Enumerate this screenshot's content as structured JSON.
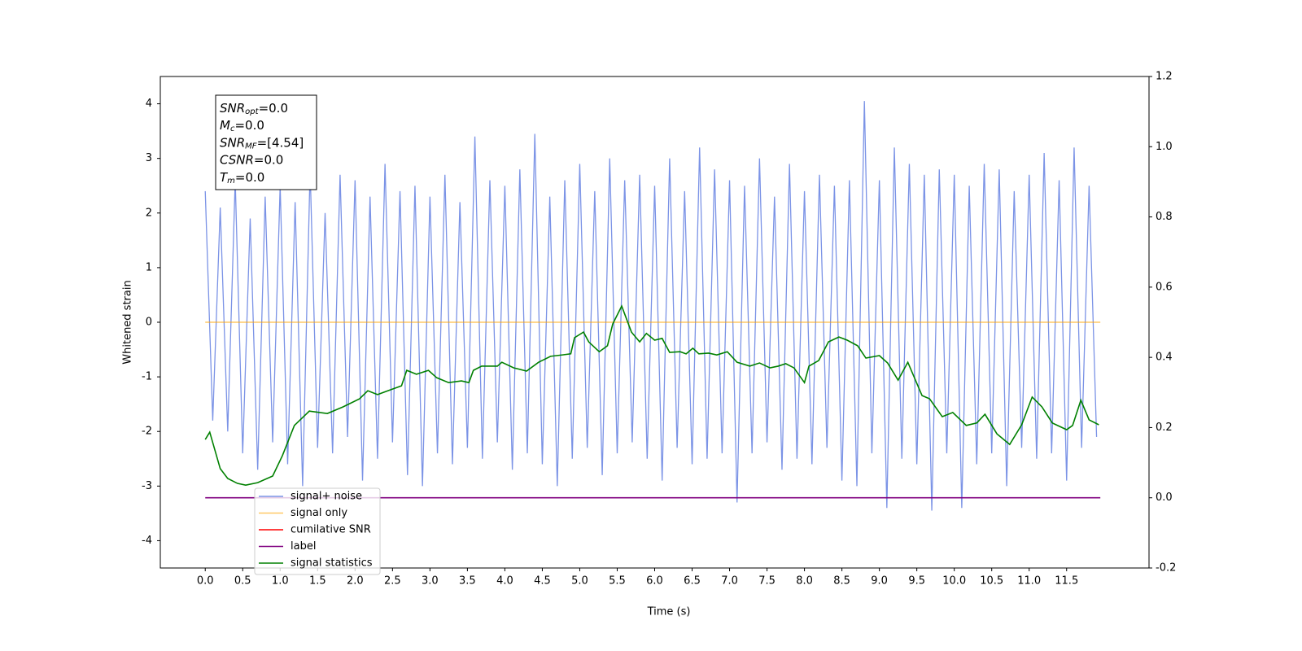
{
  "chart_data": {
    "type": "line",
    "xlabel": "Time (s)",
    "ylabel": "Whitened strain",
    "xlim": [
      -0.6,
      12.6
    ],
    "ylim": [
      -4.5,
      4.5
    ],
    "y2lim": [
      -0.2,
      1.2
    ],
    "xticks": [
      {
        "value": 0,
        "label": "0.0"
      },
      0.5,
      {
        "value": 1,
        "label": "1.0"
      },
      1.5,
      {
        "value": 2,
        "label": "2.0"
      },
      2.5,
      {
        "value": 3,
        "label": "3.0"
      },
      3.5,
      {
        "value": 4,
        "label": "4.0"
      },
      4.5,
      {
        "value": 5,
        "label": "5.0"
      },
      5.5,
      {
        "value": 6,
        "label": "6.0"
      },
      6.5,
      {
        "value": 7,
        "label": "7.0"
      },
      7.5,
      {
        "value": 8,
        "label": "8.0"
      },
      8.5,
      {
        "value": 9,
        "label": "9.0"
      },
      9.5,
      {
        "value": 10,
        "label": "10.0"
      },
      10.5,
      {
        "value": 11,
        "label": "11.0"
      },
      11.5
    ],
    "yticks": [
      -4,
      -3,
      -2,
      -1,
      0,
      1,
      2,
      3,
      4
    ],
    "y2ticks": [
      -0.2,
      {
        "value": 0,
        "label": "0.0"
      },
      0.2,
      0.4,
      0.6,
      0.8,
      {
        "value": 1,
        "label": "1.0"
      },
      1.2
    ],
    "legend": "lower left",
    "annotation": [
      {
        "symbol": "SNR",
        "subscript": "opt",
        "text": "=0.0"
      },
      {
        "symbol": "M",
        "subscript": "c",
        "text": "=0.0"
      },
      {
        "symbol": "SNR",
        "subscript": "MF",
        "text": "=[4.54]"
      },
      {
        "symbol": "CSNR",
        "text": "=0.0"
      },
      {
        "symbol": "T",
        "subscript": "m",
        "text": "=0.0"
      }
    ],
    "series": [
      {
        "name": "signal+ noise",
        "color": "#7b93e6",
        "x": [
          0,
          0.1,
          0.2,
          0.3,
          0.4,
          0.5,
          0.6,
          0.7,
          0.8,
          0.9,
          1,
          1.1,
          1.2,
          1.3,
          1.4,
          1.5,
          1.6,
          1.7,
          1.8,
          1.9,
          2,
          2.1,
          2.2,
          2.3,
          2.4,
          2.5,
          2.6,
          2.7,
          2.8,
          2.9,
          3,
          3.1,
          3.2,
          3.3,
          3.4,
          3.5,
          3.6,
          3.7,
          3.8,
          3.9,
          4,
          4.1,
          4.2,
          4.3,
          4.4,
          4.5,
          4.6,
          4.7,
          4.8,
          4.9,
          5,
          5.1,
          5.2,
          5.3,
          5.4,
          5.5,
          5.6,
          5.7,
          5.8,
          5.9,
          6,
          6.1,
          6.2,
          6.3,
          6.4,
          6.5,
          6.6,
          6.7,
          6.8,
          6.9,
          7,
          7.1,
          7.2,
          7.3,
          7.4,
          7.5,
          7.6,
          7.7,
          7.8,
          7.9,
          8,
          8.1,
          8.2,
          8.3,
          8.4,
          8.5,
          8.6,
          8.7,
          8.8,
          8.9,
          9,
          9.1,
          9.2,
          9.3,
          9.4,
          9.5,
          9.6,
          9.7,
          9.8,
          9.9,
          10,
          10.1,
          10.2,
          10.3,
          10.4,
          10.5,
          10.6,
          10.7,
          10.8,
          10.9,
          11,
          11.1,
          11.2,
          11.3,
          11.4,
          11.5,
          11.6,
          11.7,
          11.8,
          11.9
        ],
        "values": [
          2.4,
          -1.8,
          2.1,
          -2.0,
          2.6,
          -2.4,
          1.9,
          -2.7,
          2.3,
          -2.2,
          2.5,
          -2.6,
          2.2,
          -3.0,
          2.8,
          -2.3,
          2.0,
          -2.4,
          2.7,
          -2.1,
          2.6,
          -2.9,
          2.3,
          -2.5,
          2.9,
          -2.2,
          2.4,
          -2.8,
          2.5,
          -3.0,
          2.3,
          -2.4,
          2.7,
          -2.6,
          2.2,
          -2.3,
          3.4,
          -2.5,
          2.6,
          -2.2,
          2.5,
          -2.7,
          2.8,
          -2.4,
          3.45,
          -2.6,
          2.3,
          -3.0,
          2.6,
          -2.5,
          2.9,
          -2.3,
          2.4,
          -2.8,
          3.0,
          -2.4,
          2.6,
          -2.2,
          2.7,
          -2.5,
          2.5,
          -2.9,
          3.0,
          -2.3,
          2.4,
          -2.6,
          3.2,
          -2.5,
          2.8,
          -2.4,
          2.6,
          -3.3,
          2.5,
          -2.4,
          3.0,
          -2.2,
          2.3,
          -2.7,
          2.9,
          -2.5,
          2.4,
          -2.6,
          2.7,
          -2.3,
          2.5,
          -2.9,
          2.6,
          -3.0,
          4.05,
          -2.4,
          2.6,
          -3.4,
          3.2,
          -2.5,
          2.9,
          -2.6,
          2.7,
          -3.45,
          2.8,
          -2.4,
          2.7,
          -3.4,
          2.5,
          -2.6,
          2.9,
          -2.4,
          2.8,
          -3.0,
          2.4,
          -2.3,
          2.7,
          -2.5,
          3.1,
          -2.4,
          2.6,
          -2.9,
          3.2,
          -2.3,
          2.5,
          -2.1
        ]
      },
      {
        "name": "signal only",
        "color": "#ffa500",
        "x": [
          0,
          11.95
        ],
        "values": [
          0,
          0
        ]
      },
      {
        "name": "cumilative SNR",
        "color": "#ff0000",
        "x": [],
        "values": []
      },
      {
        "name": "label",
        "color": "#800080",
        "axis": "y2",
        "x": [
          0,
          11.95
        ],
        "values": [
          0,
          0
        ]
      },
      {
        "name": "signal statistics",
        "color": "#008000",
        "axis": "y2",
        "x": [
          0,
          0.06,
          0.2,
          0.3,
          0.43,
          0.54,
          0.7,
          0.9,
          1.03,
          1.19,
          1.39,
          1.63,
          1.84,
          2.06,
          2.17,
          2.3,
          2.44,
          2.62,
          2.69,
          2.82,
          2.98,
          3.09,
          3.25,
          3.42,
          3.52,
          3.58,
          3.69,
          3.9,
          3.96,
          4.12,
          4.29,
          4.45,
          4.61,
          4.77,
          4.88,
          4.93,
          5.05,
          5.12,
          5.26,
          5.37,
          5.44,
          5.56,
          5.69,
          5.8,
          5.89,
          6.0,
          6.1,
          6.2,
          6.34,
          6.42,
          6.51,
          6.59,
          6.72,
          6.83,
          6.97,
          7.1,
          7.27,
          7.4,
          7.54,
          7.65,
          7.75,
          7.86,
          8.0,
          8.06,
          8.19,
          8.32,
          8.46,
          8.57,
          8.71,
          8.82,
          9.0,
          9.11,
          9.25,
          9.38,
          9.57,
          9.67,
          9.84,
          9.98,
          10.16,
          10.3,
          10.41,
          10.57,
          10.74,
          10.9,
          11.04,
          11.17,
          11.31,
          11.5,
          11.58,
          11.69,
          11.8,
          11.93
        ],
        "values": [
          0.166,
          0.187,
          0.083,
          0.055,
          0.041,
          0.036,
          0.043,
          0.062,
          0.12,
          0.206,
          0.247,
          0.24,
          0.259,
          0.282,
          0.305,
          0.294,
          0.305,
          0.319,
          0.363,
          0.352,
          0.363,
          0.342,
          0.328,
          0.333,
          0.328,
          0.363,
          0.375,
          0.375,
          0.386,
          0.37,
          0.361,
          0.386,
          0.403,
          0.407,
          0.41,
          0.456,
          0.472,
          0.444,
          0.416,
          0.433,
          0.495,
          0.546,
          0.472,
          0.444,
          0.468,
          0.449,
          0.454,
          0.414,
          0.416,
          0.41,
          0.426,
          0.41,
          0.412,
          0.407,
          0.416,
          0.386,
          0.375,
          0.384,
          0.37,
          0.375,
          0.382,
          0.37,
          0.328,
          0.375,
          0.391,
          0.444,
          0.458,
          0.449,
          0.433,
          0.398,
          0.405,
          0.384,
          0.335,
          0.386,
          0.291,
          0.282,
          0.231,
          0.243,
          0.206,
          0.213,
          0.238,
          0.182,
          0.152,
          0.208,
          0.287,
          0.259,
          0.213,
          0.194,
          0.206,
          0.278,
          0.222,
          0.208
        ]
      }
    ]
  }
}
